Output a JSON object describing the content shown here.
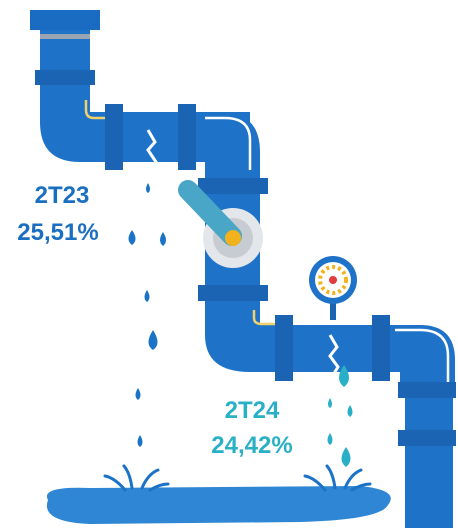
{
  "labels": [
    {
      "period": "2T23",
      "value": "25,51%"
    },
    {
      "period": "2T24",
      "value": "24,42%"
    }
  ]
}
